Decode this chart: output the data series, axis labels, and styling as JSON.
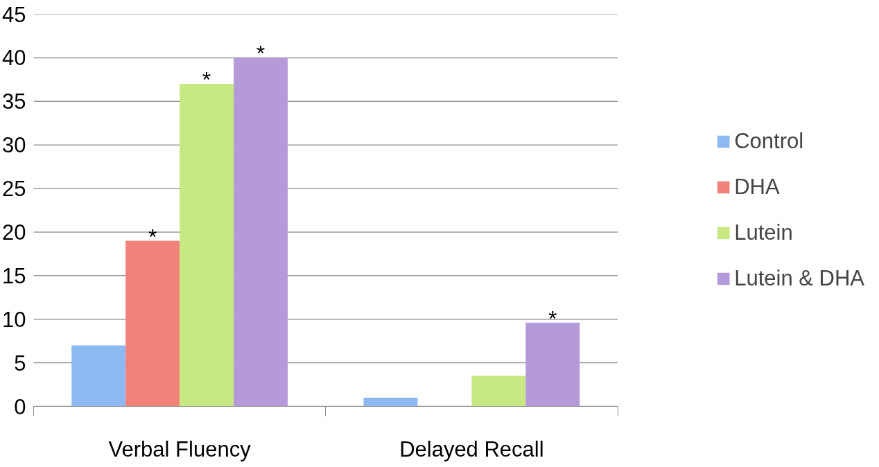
{
  "chart_data": {
    "type": "bar",
    "categories": [
      "Verbal Fluency",
      "Delayed Recall"
    ],
    "series": [
      {
        "name": "Control",
        "color": "#8db8f0",
        "values": [
          7,
          1
        ]
      },
      {
        "name": "DHA",
        "color": "#f0827a",
        "values": [
          19,
          0
        ],
        "value_labels": [
          "*",
          null
        ]
      },
      {
        "name": "Lutein",
        "color": "#c8e882",
        "values": [
          37,
          3.5
        ],
        "value_labels": [
          "*",
          null
        ]
      },
      {
        "name": "Lutein & DHA",
        "color": "#b49ad8",
        "values": [
          40,
          9.6
        ],
        "value_labels": [
          "*",
          "*"
        ]
      }
    ],
    "ylim": [
      0,
      45
    ],
    "yticks": [
      0,
      5,
      10,
      15,
      20,
      25,
      30,
      35,
      40,
      45
    ],
    "grid": "y",
    "legend": "right"
  }
}
